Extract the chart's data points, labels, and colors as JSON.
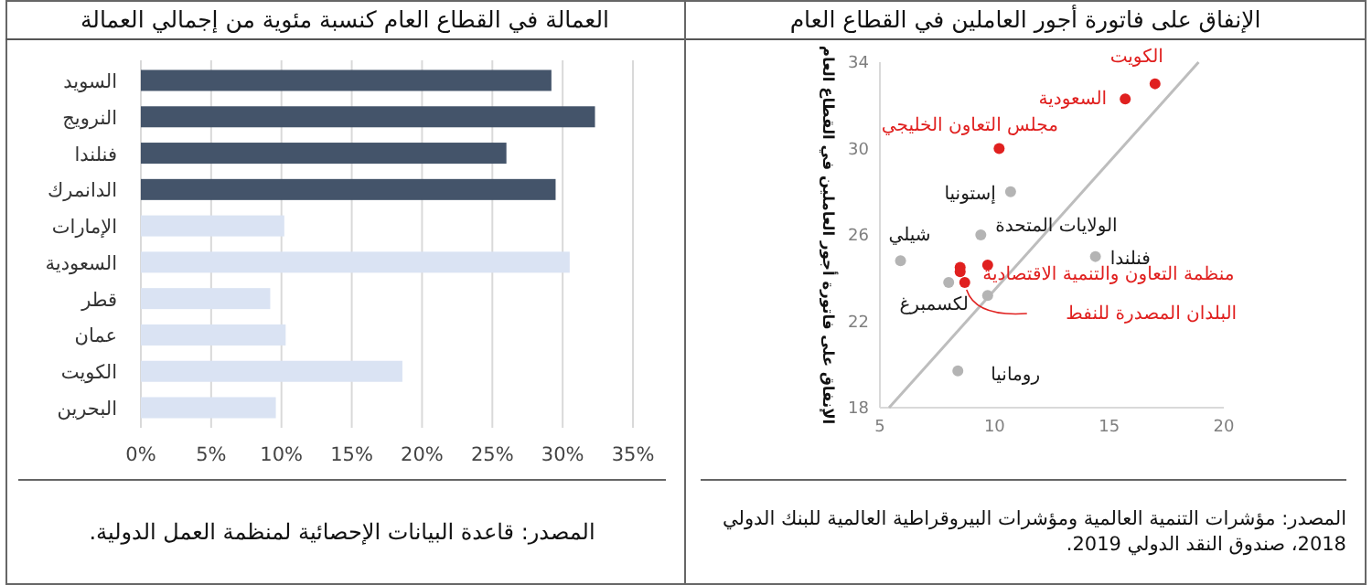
{
  "chart_data": [
    {
      "type": "bar",
      "orientation": "horizontal",
      "title": "العمالة في القطاع العام كنسبة مئوية من إجمالي العمالة",
      "categories": [
        "السويد",
        "النرويج",
        "فنلندا",
        "الدانمرك",
        "الإمارات",
        "السعودية",
        "قطر",
        "عمان",
        "الكويت",
        "البحرين"
      ],
      "values": [
        29.2,
        32.3,
        26.0,
        29.5,
        10.2,
        30.5,
        9.2,
        10.3,
        18.6,
        9.6
      ],
      "colors": [
        "#44546a",
        "#44546a",
        "#44546a",
        "#44546a",
        "#dae3f3",
        "#dae3f3",
        "#dae3f3",
        "#dae3f3",
        "#dae3f3",
        "#dae3f3"
      ],
      "xlim": [
        0,
        35
      ],
      "xticks": [
        {
          "value": 0,
          "label": "0%"
        },
        {
          "value": 5,
          "label": "5%"
        },
        {
          "value": 10,
          "label": "10%"
        },
        {
          "value": 15,
          "label": "15%"
        },
        {
          "value": 20,
          "label": "20%"
        },
        {
          "value": 25,
          "label": "25%"
        },
        {
          "value": 30,
          "label": "30%"
        },
        {
          "value": 35,
          "label": "35%"
        }
      ],
      "grid": "x",
      "annotations": [
        "المصدر: قاعدة البيانات الإحصائية لمنظمة العمل الدولية."
      ]
    },
    {
      "type": "scatter",
      "title": "الإنفاق على فاتورة أجور العاملين في القطاع العام",
      "ylabel": "الإنفاق على فاتورة أجور العاملين في القطاع العام",
      "xlim": [
        5,
        20
      ],
      "ylim": [
        18,
        34
      ],
      "xticks": [
        5,
        10,
        15,
        20
      ],
      "yticks": [
        18,
        22,
        26,
        30,
        34
      ],
      "marker": "circle",
      "grid": false,
      "series": [
        {
          "type": "line",
          "marker": "none",
          "color": "#bdbdbd",
          "x": [
            5.4,
            18.9
          ],
          "values": [
            18.0,
            34.0
          ]
        },
        {
          "name": "الكويت",
          "color": "#e0201f",
          "x": [
            17.0
          ],
          "values": [
            33.0
          ]
        },
        {
          "name": "السعودية",
          "color": "#e0201f",
          "x": [
            15.7
          ],
          "values": [
            32.3
          ]
        },
        {
          "name": "مجلس التعاون الخليجي",
          "color": "#e0201f",
          "x": [
            10.2
          ],
          "values": [
            30.0
          ]
        },
        {
          "name": "منظمة التعاون والتنمية الاقتصادية",
          "color": "#e0201f",
          "x": [
            9.7
          ],
          "values": [
            24.6
          ]
        },
        {
          "name": "البلدان المصدرة للنفط",
          "color": "#e0201f",
          "x": [
            8.7
          ],
          "values": [
            23.8
          ]
        },
        {
          "color": "#e0201f",
          "x": [
            8.5,
            8.5
          ],
          "values": [
            24.5,
            24.3
          ]
        },
        {
          "name": "إستونيا",
          "color": "#b4b4b4",
          "x": [
            10.7
          ],
          "values": [
            28.0
          ]
        },
        {
          "name": "الولايات المتحدة",
          "color": "#b4b4b4",
          "x": [
            9.4
          ],
          "values": [
            26.0
          ]
        },
        {
          "name": "شيلي",
          "color": "#b4b4b4",
          "x": [
            5.9
          ],
          "values": [
            24.8
          ]
        },
        {
          "name": "فنلندا",
          "color": "#b4b4b4",
          "x": [
            14.4
          ],
          "values": [
            25.0
          ]
        },
        {
          "name": "لكسمبرغ",
          "color": "#b4b4b4",
          "x": [
            8.0
          ],
          "values": [
            23.8
          ]
        },
        {
          "name": "رومانيا",
          "color": "#b4b4b4",
          "x": [
            8.4
          ],
          "values": [
            19.7
          ]
        },
        {
          "color": "#b4b4b4",
          "x": [
            9.7
          ],
          "values": [
            23.2
          ]
        }
      ],
      "annotations": [
        "المصدر: مؤشرات التنمية العالمية ومؤشرات البيروقراطية العالمية للبنك الدولي 2018، صندوق النقد الدولي 2019."
      ]
    }
  ]
}
